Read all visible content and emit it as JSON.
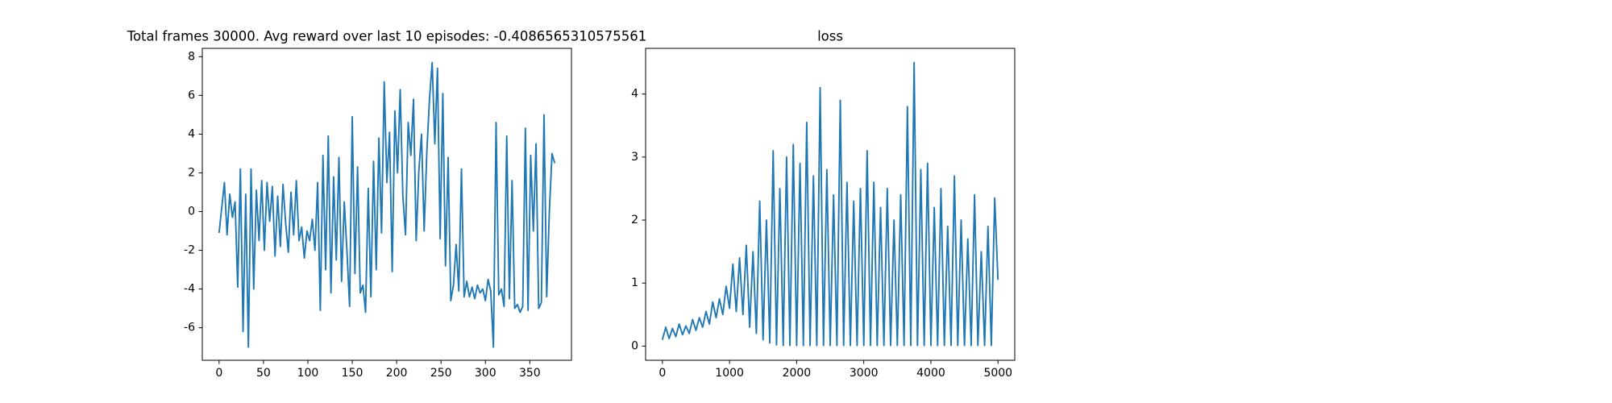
{
  "chart_data": [
    {
      "type": "line",
      "title": "Total frames 30000. Avg reward over last 10 episodes: -0.4086565310575561",
      "series": [
        {
          "color": "#1f77b4",
          "x": [
            0,
            3,
            6,
            9,
            12,
            15,
            18,
            21,
            24,
            27,
            30,
            33,
            36,
            39,
            42,
            45,
            48,
            51,
            54,
            57,
            60,
            63,
            66,
            69,
            72,
            75,
            78,
            81,
            84,
            87,
            90,
            93,
            96,
            99,
            102,
            105,
            108,
            111,
            114,
            117,
            120,
            123,
            126,
            129,
            132,
            135,
            138,
            141,
            144,
            147,
            150,
            153,
            156,
            159,
            162,
            165,
            168,
            171,
            174,
            177,
            180,
            183,
            186,
            189,
            192,
            195,
            198,
            201,
            204,
            207,
            210,
            213,
            216,
            219,
            222,
            225,
            228,
            231,
            234,
            237,
            240,
            243,
            246,
            249,
            252,
            255,
            258,
            261,
            264,
            267,
            270,
            273,
            276,
            279,
            282,
            285,
            288,
            291,
            294,
            297,
            300,
            303,
            306,
            309,
            312,
            315,
            318,
            321,
            324,
            327,
            330,
            333,
            336,
            339,
            342,
            345,
            348,
            351,
            354,
            357,
            360,
            363,
            366,
            369,
            372,
            375,
            378
          ],
          "values": [
            -1.1,
            0.2,
            1.5,
            -1.2,
            0.9,
            -0.3,
            0.5,
            -3.9,
            2.2,
            -6.2,
            0.9,
            -7.0,
            2.2,
            -4.0,
            1.1,
            -1.5,
            1.6,
            -2.0,
            1.5,
            -0.5,
            1.3,
            -2.3,
            0.8,
            -1.8,
            1.4,
            -0.6,
            -2.1,
            1.0,
            -1.2,
            1.6,
            -1.5,
            -0.8,
            -2.4,
            -1.0,
            -1.5,
            -0.4,
            -2.0,
            1.5,
            -5.1,
            2.9,
            -3.0,
            3.9,
            -4.2,
            1.8,
            -2.5,
            2.8,
            -3.6,
            0.5,
            -2.0,
            -4.9,
            4.9,
            -3.2,
            2.3,
            -4.2,
            -3.8,
            -5.2,
            1.2,
            -4.4,
            2.6,
            -3.0,
            3.8,
            -1.1,
            6.7,
            1.5,
            4.1,
            -3.1,
            5.2,
            2.0,
            6.3,
            0.8,
            -1.2,
            4.6,
            2.9,
            5.8,
            -1.5,
            2.1,
            4.0,
            -1.0,
            3.1,
            5.8,
            7.7,
            3.5,
            7.4,
            -1.4,
            6.1,
            -2.8,
            2.8,
            -4.6,
            -3.8,
            -1.7,
            -4.1,
            2.2,
            -4.4,
            -3.6,
            -4.4,
            -3.9,
            -4.5,
            -3.8,
            -4.2,
            -4.0,
            -4.6,
            -3.5,
            -4.1,
            -7.0,
            4.6,
            -4.3,
            -4.0,
            -4.9,
            3.9,
            -4.5,
            1.6,
            -5.0,
            -4.8,
            -5.2,
            -4.9,
            4.3,
            -5.1,
            2.9,
            -1.0,
            3.5,
            -5.0,
            -4.7,
            5.0,
            -4.4,
            0.0,
            3.0,
            2.5
          ]
        }
      ],
      "xlim": [
        -18.9,
        396.9
      ],
      "xticks": [
        0,
        50,
        100,
        150,
        200,
        250,
        300,
        350
      ],
      "ylim": [
        -7.68,
        8.43
      ],
      "yticks": [
        -6,
        -4,
        -2,
        0,
        2,
        4,
        6,
        8
      ]
    },
    {
      "type": "line",
      "title": "loss",
      "series": [
        {
          "color": "#1f77b4",
          "x": [
            0,
            50,
            100,
            150,
            200,
            250,
            300,
            350,
            400,
            450,
            500,
            550,
            600,
            650,
            700,
            750,
            800,
            850,
            900,
            950,
            1000,
            1050,
            1100,
            1150,
            1200,
            1250,
            1300,
            1350,
            1400,
            1450,
            1500,
            1550,
            1600,
            1650,
            1700,
            1750,
            1800,
            1850,
            1900,
            1950,
            2000,
            2050,
            2100,
            2150,
            2200,
            2250,
            2300,
            2350,
            2400,
            2450,
            2500,
            2550,
            2600,
            2650,
            2700,
            2750,
            2800,
            2850,
            2900,
            2950,
            3000,
            3050,
            3100,
            3150,
            3200,
            3250,
            3300,
            3350,
            3400,
            3450,
            3500,
            3550,
            3600,
            3650,
            3700,
            3750,
            3800,
            3850,
            3900,
            3950,
            4000,
            4050,
            4100,
            4150,
            4200,
            4250,
            4300,
            4350,
            4400,
            4450,
            4500,
            4550,
            4600,
            4650,
            4700,
            4750,
            4800,
            4850,
            4900,
            4950,
            4999
          ],
          "values": [
            0.1,
            0.3,
            0.12,
            0.28,
            0.15,
            0.35,
            0.18,
            0.32,
            0.2,
            0.42,
            0.25,
            0.45,
            0.3,
            0.55,
            0.35,
            0.7,
            0.45,
            0.75,
            0.5,
            0.95,
            0.6,
            1.3,
            0.55,
            1.4,
            0.5,
            1.6,
            0.3,
            1.5,
            0.2,
            2.3,
            0.1,
            2.0,
            0.05,
            3.1,
            0.02,
            2.5,
            0.01,
            3.0,
            0.01,
            3.2,
            0.01,
            2.9,
            0.01,
            3.55,
            0.01,
            2.7,
            0.01,
            4.1,
            0.01,
            2.8,
            0.01,
            2.4,
            0.01,
            3.9,
            0.01,
            2.6,
            0.01,
            2.3,
            0.01,
            2.5,
            0.01,
            3.1,
            0.01,
            2.6,
            0.01,
            2.2,
            0.01,
            2.5,
            0.01,
            2.0,
            0.01,
            2.4,
            0.01,
            3.8,
            0.01,
            4.5,
            0.01,
            2.8,
            0.01,
            2.9,
            0.01,
            2.2,
            0.01,
            2.5,
            0.01,
            1.9,
            0.01,
            2.7,
            0.01,
            2.0,
            0.01,
            1.7,
            0.01,
            2.4,
            0.01,
            1.5,
            0.01,
            1.9,
            0.01,
            2.35,
            1.05
          ]
        }
      ],
      "xlim": [
        -250,
        5249
      ],
      "xticks": [
        0,
        1000,
        2000,
        3000,
        4000,
        5000
      ],
      "ylim": [
        -0.225,
        4.725
      ],
      "yticks": [
        0,
        1,
        2,
        3,
        4
      ]
    }
  ]
}
